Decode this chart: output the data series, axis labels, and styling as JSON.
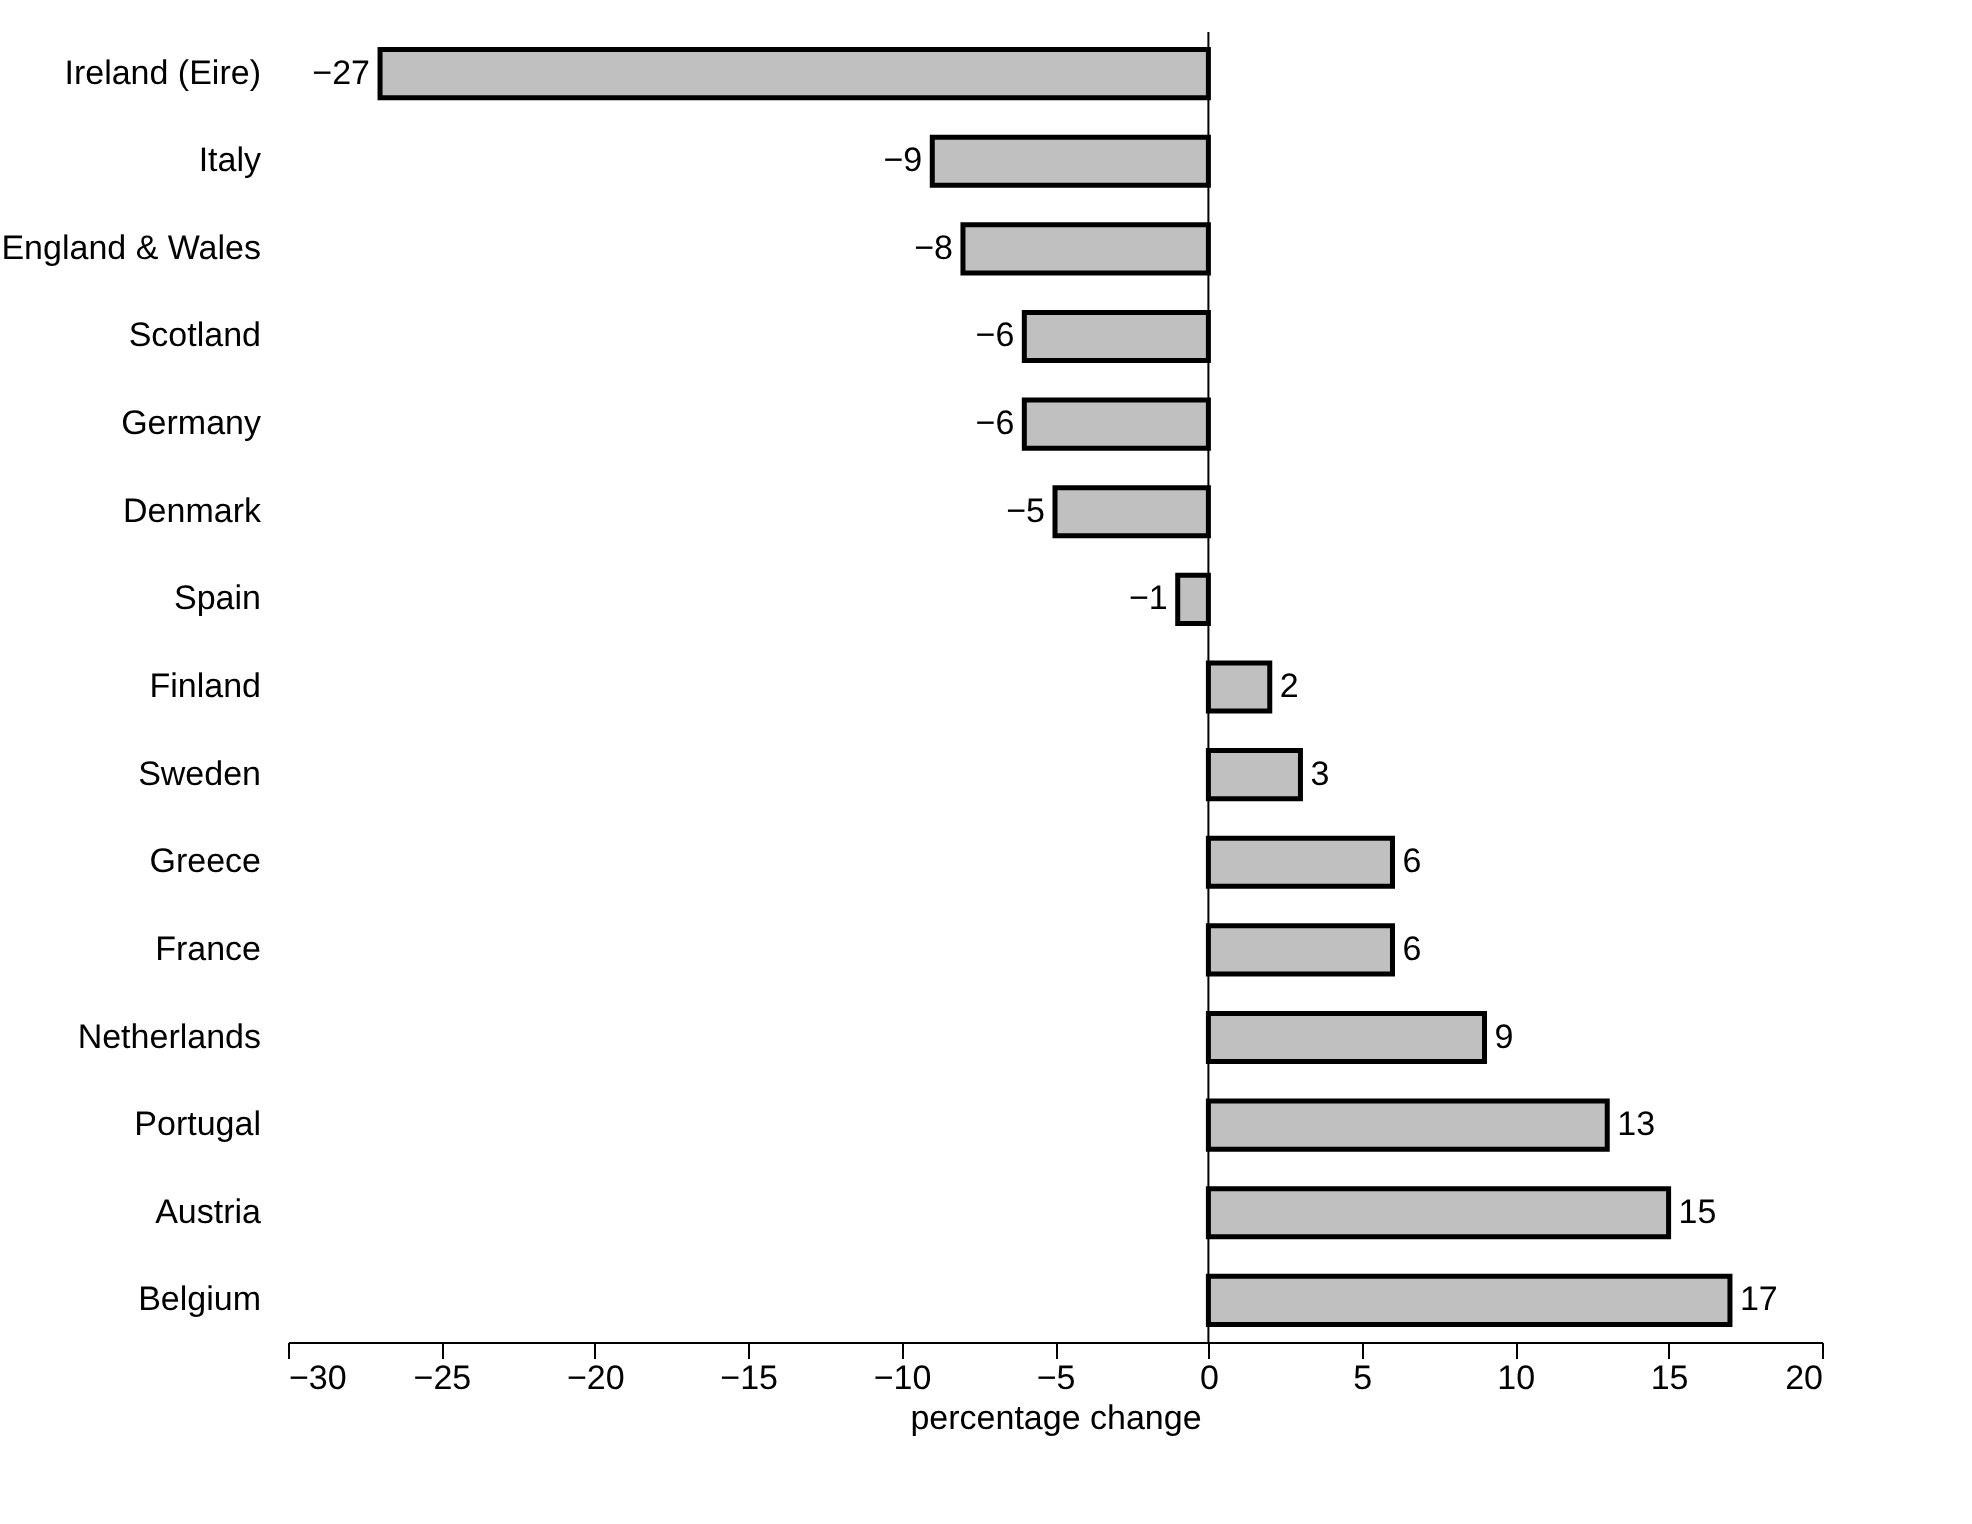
{
  "chart_data": {
    "type": "bar",
    "orientation": "horizontal",
    "xlabel": "percentage change",
    "categories": [
      "Ireland (Eire)",
      "Italy",
      "England & Wales",
      "Scotland",
      "Germany",
      "Denmark",
      "Spain",
      "Finland",
      "Sweden",
      "Greece",
      "France",
      "Netherlands",
      "Portugal",
      "Austria",
      "Belgium"
    ],
    "values": [
      -27,
      -9,
      -8,
      -6,
      -6,
      -5,
      -1,
      2,
      3,
      6,
      6,
      9,
      13,
      15,
      17
    ],
    "color": "#c0c0c0",
    "data_labels": true,
    "xlim": [
      -30,
      20
    ],
    "xticks": [
      -30,
      -25,
      -20,
      -15,
      -10,
      -5,
      0,
      5,
      10,
      15,
      20
    ],
    "ref_lines": [
      {
        "axis": "x",
        "value": 0
      }
    ],
    "grid": false
  }
}
